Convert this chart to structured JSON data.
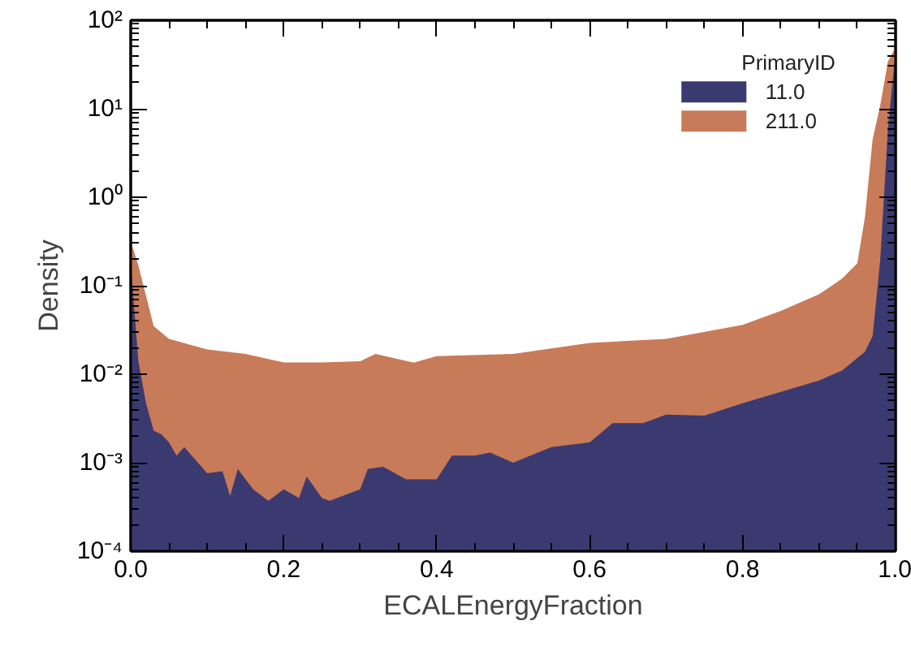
{
  "chart_data": {
    "type": "area",
    "xlabel": "ECALEnergyFraction",
    "ylabel": "Density",
    "legend_title": "PrimaryID",
    "legend": "top right",
    "log": "y",
    "grid": false,
    "xlim": [
      0,
      1
    ],
    "xticks": [
      {
        "value": 0,
        "label": "0.0"
      },
      {
        "value": 0.2,
        "label": "0.2"
      },
      {
        "value": 0.4,
        "label": "0.4"
      },
      {
        "value": 0.6,
        "label": "0.6"
      },
      {
        "value": 0.8,
        "label": "0.8"
      },
      {
        "value": 1,
        "label": "1.0"
      }
    ],
    "ylim": [
      0.0001,
      100
    ],
    "yticks": [
      {
        "value": 0.0001,
        "label": "10⁻⁴"
      },
      {
        "value": 0.001,
        "label": "10⁻³"
      },
      {
        "value": 0.01,
        "label": "10⁻²"
      },
      {
        "value": 0.1,
        "label": "10⁻¹"
      },
      {
        "value": 1,
        "label": "10⁰"
      },
      {
        "value": 10,
        "label": "10¹"
      },
      {
        "value": 100,
        "label": "10²"
      }
    ],
    "series": [
      {
        "name": "211.0",
        "color": "#c87b58",
        "x": [
          0,
          0.01,
          0.03,
          0.05,
          0.1,
          0.15,
          0.2,
          0.25,
          0.3,
          0.32,
          0.37,
          0.4,
          0.5,
          0.6,
          0.7,
          0.8,
          0.85,
          0.9,
          0.93,
          0.95,
          0.96,
          0.97,
          0.98,
          0.99,
          1.0
        ],
        "values": [
          0.32,
          0.17,
          0.035,
          0.025,
          0.019,
          0.017,
          0.0136,
          0.0136,
          0.014,
          0.017,
          0.0135,
          0.016,
          0.017,
          0.0226,
          0.025,
          0.036,
          0.052,
          0.08,
          0.12,
          0.18,
          0.6,
          4.5,
          11,
          34,
          50
        ]
      },
      {
        "name": "11.0",
        "color": "#3b3a70",
        "x": [
          0,
          0.01,
          0.02,
          0.03,
          0.04,
          0.05,
          0.06,
          0.07,
          0.1,
          0.12,
          0.13,
          0.14,
          0.16,
          0.18,
          0.2,
          0.22,
          0.23,
          0.25,
          0.26,
          0.3,
          0.31,
          0.33,
          0.36,
          0.4,
          0.42,
          0.45,
          0.47,
          0.5,
          0.55,
          0.6,
          0.63,
          0.67,
          0.7,
          0.75,
          0.8,
          0.85,
          0.9,
          0.93,
          0.96,
          0.97,
          0.98,
          0.99,
          1.0
        ],
        "values": [
          0.18,
          0.014,
          0.0047,
          0.0023,
          0.0021,
          0.0017,
          0.0012,
          0.0015,
          0.00076,
          0.0008,
          0.00042,
          0.00085,
          0.0005,
          0.00037,
          0.0005,
          0.0004,
          0.0007,
          0.0004,
          0.00037,
          0.0005,
          0.00085,
          0.0009,
          0.00065,
          0.00065,
          0.0012,
          0.0012,
          0.0013,
          0.001,
          0.0015,
          0.0017,
          0.0028,
          0.0028,
          0.0035,
          0.0034,
          0.0047,
          0.0063,
          0.0085,
          0.011,
          0.018,
          0.027,
          0.2,
          5.9,
          45
        ]
      }
    ]
  }
}
